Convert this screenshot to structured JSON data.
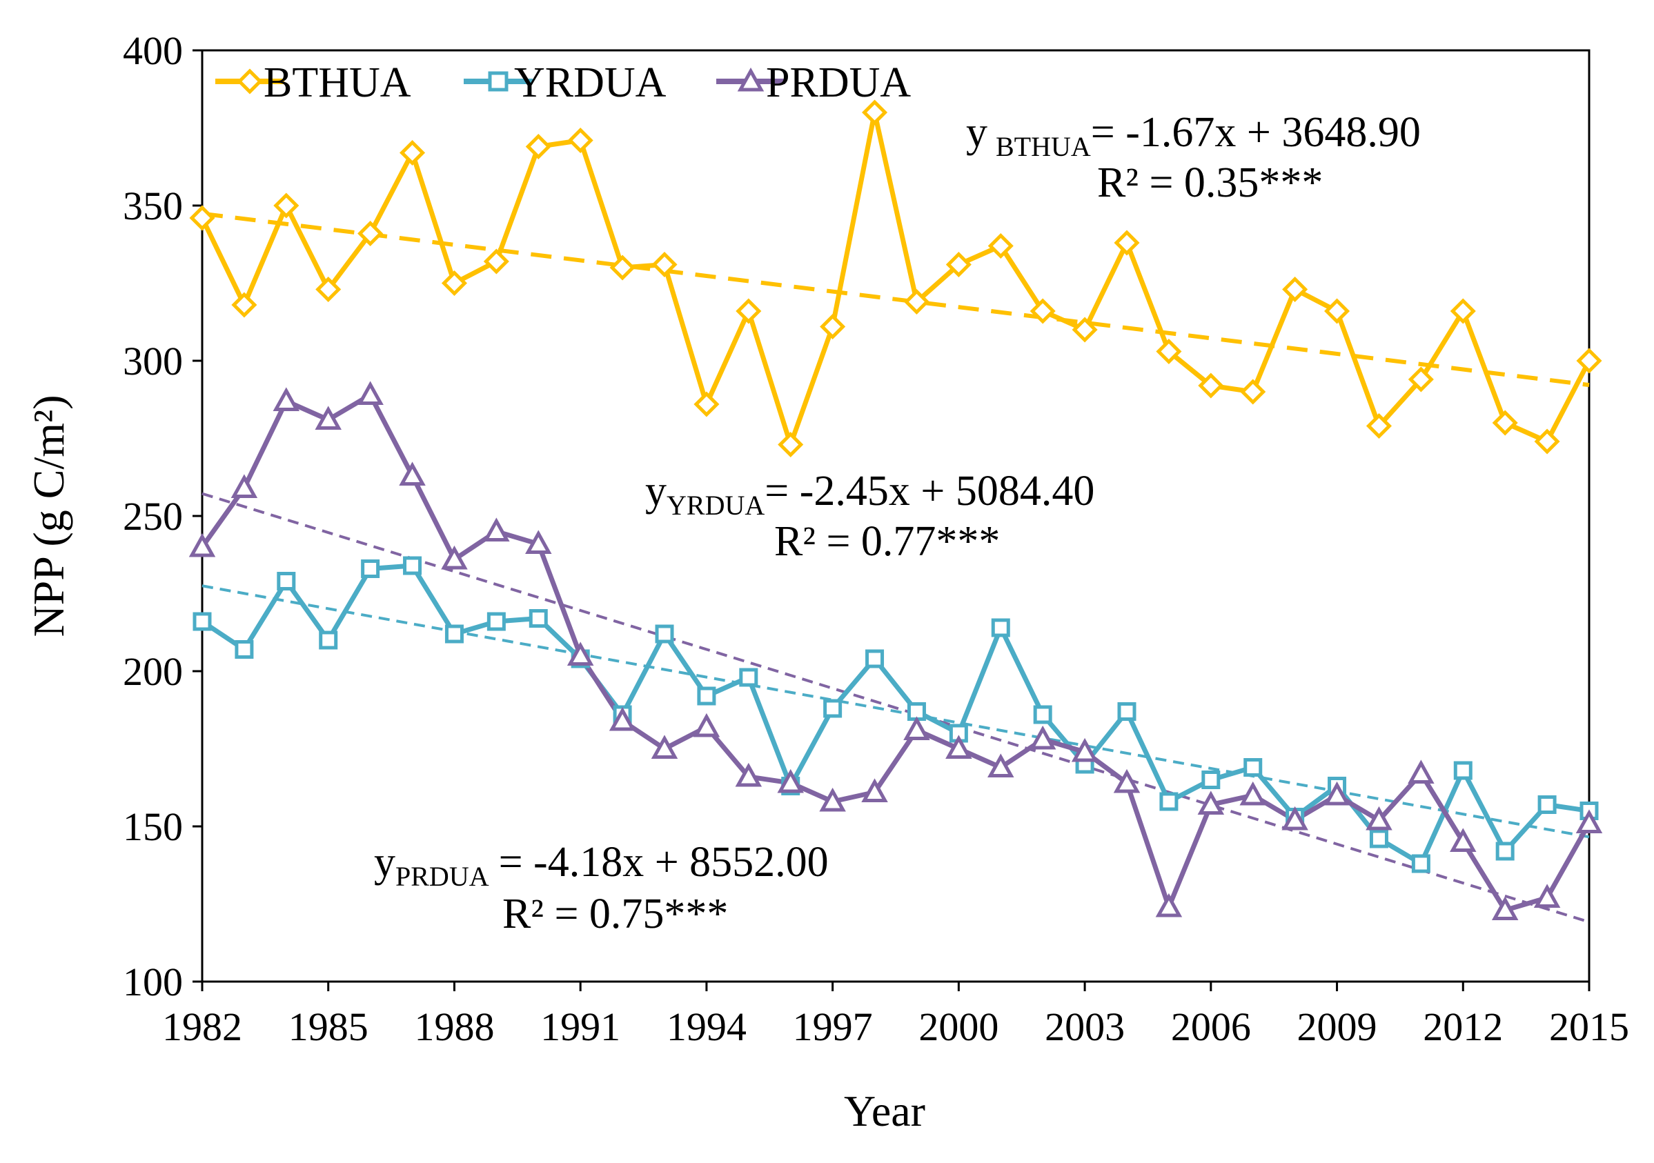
{
  "chart_data": {
    "type": "line",
    "xlabel": "Year",
    "ylabel": "NPP (g C/m²)",
    "xlim": [
      1982,
      2015
    ],
    "ylim": [
      100,
      400
    ],
    "x_ticks": [
      "1982",
      "1985",
      "1988",
      "1991",
      "1994",
      "1997",
      "2000",
      "2003",
      "2006",
      "2009",
      "2012",
      "2015"
    ],
    "y_ticks": [
      "100",
      "150",
      "200",
      "250",
      "300",
      "350",
      "400"
    ],
    "legend_position": "top-left",
    "x": [
      1982,
      1983,
      1984,
      1985,
      1986,
      1987,
      1988,
      1989,
      1990,
      1991,
      1992,
      1993,
      1994,
      1995,
      1996,
      1997,
      1998,
      1999,
      2000,
      2001,
      2002,
      2003,
      2004,
      2005,
      2006,
      2007,
      2008,
      2009,
      2010,
      2011,
      2012,
      2013,
      2014,
      2015
    ],
    "series": [
      {
        "name": "BTHUA",
        "color": "#FFC000",
        "marker": "diamond",
        "values": [
          346,
          318,
          350,
          323,
          341,
          367,
          325,
          332,
          369,
          371,
          330,
          331,
          286,
          316,
          273,
          311,
          380,
          319,
          331,
          337,
          316,
          310,
          338,
          303,
          292,
          290,
          323,
          316,
          279,
          294,
          316,
          280,
          274,
          300
        ],
        "trend": {
          "slope": -1.67,
          "intercept": 3648.9,
          "start": 347.4,
          "end": 292.2
        },
        "equation": {
          "y": "y",
          "sub": "BTHUA",
          "rhs": "= -1.67x + 3648.90",
          "r2": "R² = 0.35***"
        }
      },
      {
        "name": "YRDUA",
        "color": "#4BACC6",
        "marker": "square",
        "values": [
          216,
          207,
          229,
          210,
          233,
          234,
          212,
          216,
          217,
          204,
          186,
          212,
          192,
          198,
          163,
          188,
          204,
          187,
          180,
          214,
          186,
          170,
          187,
          158,
          165,
          169,
          153,
          163,
          146,
          138,
          168,
          142,
          157,
          155
        ],
        "trend": {
          "slope": -2.45,
          "intercept": 5084.4,
          "start": 227.5,
          "end": 146.6
        },
        "equation": {
          "y": "y",
          "sub": "YRDUA",
          "rhs": "= -2.45x + 5084.40",
          "r2": "R² = 0.77***"
        }
      },
      {
        "name": "PRDUA",
        "color": "#8064A2",
        "marker": "triangle",
        "values": [
          240,
          259,
          287,
          281,
          289,
          263,
          236,
          245,
          241,
          205,
          184,
          175,
          182,
          166,
          164,
          158,
          161,
          181,
          175,
          169,
          178,
          174,
          164,
          124,
          157,
          160,
          152,
          160,
          152,
          167,
          145,
          123,
          127,
          151
        ],
        "trend": {
          "slope": -4.18,
          "intercept": 8552.0,
          "start": 257.2,
          "end": 119.2
        },
        "equation": {
          "y": "y",
          "sub": "PRDUA",
          "rhs": "= -4.18x + 8552.00",
          "r2": "R² = 0.75***"
        }
      }
    ]
  }
}
